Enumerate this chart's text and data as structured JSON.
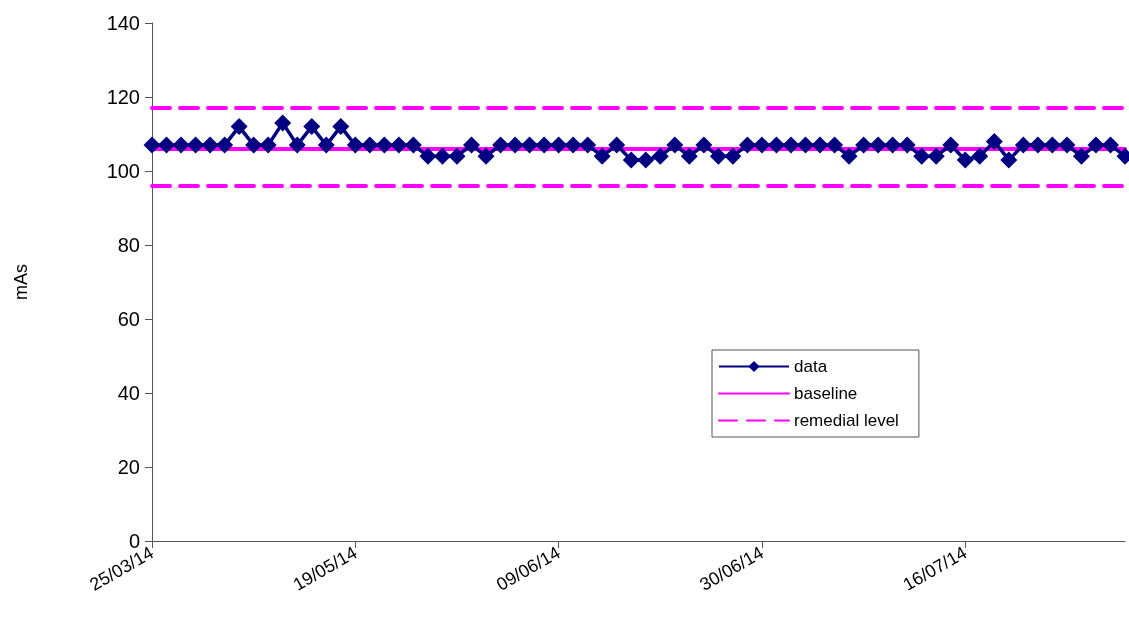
{
  "chart_data": {
    "type": "line",
    "ylabel": "mAs",
    "categories": [
      "25/03/14",
      null,
      null,
      null,
      null,
      null,
      null,
      null,
      null,
      null,
      null,
      null,
      null,
      null,
      "19/05/14",
      null,
      null,
      null,
      null,
      null,
      null,
      null,
      null,
      null,
      null,
      null,
      null,
      null,
      "09/06/14",
      null,
      null,
      null,
      null,
      null,
      null,
      null,
      null,
      null,
      null,
      null,
      null,
      null,
      "30/06/14",
      null,
      null,
      null,
      null,
      null,
      null,
      null,
      null,
      null,
      null,
      null,
      null,
      null,
      "16/07/14",
      null,
      null,
      null,
      null,
      null,
      null,
      null,
      null,
      null,
      null,
      null
    ],
    "series": [
      {
        "name": "data",
        "color": "#000080",
        "marker": "diamond",
        "values": [
          107,
          107,
          107,
          107,
          107,
          107,
          112,
          107,
          107,
          113,
          107,
          112,
          107,
          112,
          107,
          107,
          107,
          107,
          107,
          104,
          104,
          104,
          107,
          104,
          107,
          107,
          107,
          107,
          107,
          107,
          107,
          104,
          107,
          103,
          103,
          104,
          107,
          104,
          107,
          104,
          104,
          107,
          107,
          107,
          107,
          107,
          107,
          107,
          104,
          107,
          107,
          107,
          107,
          104,
          104,
          107,
          103,
          104,
          108,
          103,
          107,
          107,
          107,
          107,
          104,
          107,
          107,
          104
        ]
      }
    ],
    "ref_lines": [
      {
        "axis": "y",
        "value": 106,
        "label": "baseline",
        "color": "#ff00ff",
        "line_style": "solid"
      },
      {
        "axis": "y",
        "value": 117,
        "label": "remedial level",
        "color": "#ff00ff",
        "line_style": "dashed"
      },
      {
        "axis": "y",
        "value": 96,
        "color": "#ff00ff",
        "line_style": "dashed"
      }
    ],
    "ylim": [
      0,
      140
    ],
    "yticks": [
      0,
      20,
      40,
      60,
      80,
      100,
      120,
      140
    ],
    "grid": false,
    "legend": "right"
  }
}
